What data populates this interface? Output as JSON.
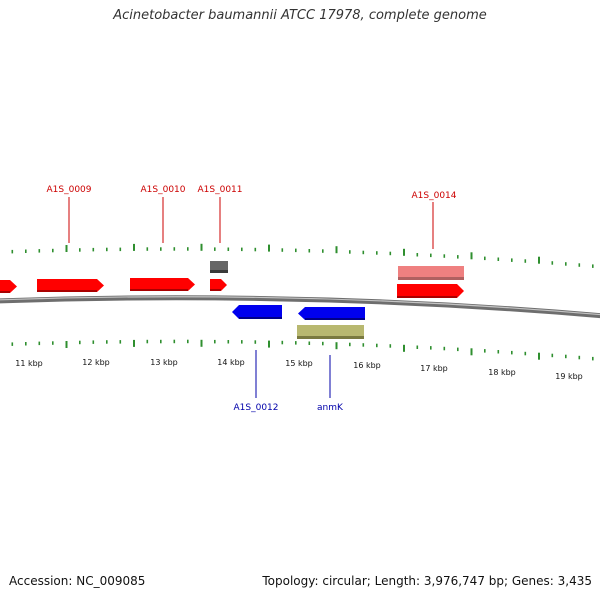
{
  "title": "Acinetobacter baumannii ATCC 17978, complete genome",
  "footer": {
    "accession": "Accession: NC_009085",
    "summary": "Topology: circular; Length: 3,976,747 bp; Genes: 3,435"
  },
  "colors": {
    "forward_gene": "#ff0000",
    "forward_gene_light": "#ef8080",
    "reverse_gene": "#0000ee",
    "other_feature": "#666666",
    "reverse_other": "#b8b870",
    "tick": "#2f8f2f",
    "backbone": "#777777",
    "forward_label": "#cc0000",
    "reverse_label": "#0000aa"
  },
  "scale_labels": [
    "11 kbp",
    "12 kbp",
    "13 kbp",
    "14 kbp",
    "15 kbp",
    "16 kbp",
    "17 kbp",
    "18 kbp",
    "19 kbp"
  ],
  "genes": {
    "forward_labels": [
      "A1S_0009",
      "A1S_0010",
      "A1S_0011",
      "A1S_0014"
    ],
    "reverse_labels": [
      "A1S_0012",
      "anmK"
    ]
  }
}
